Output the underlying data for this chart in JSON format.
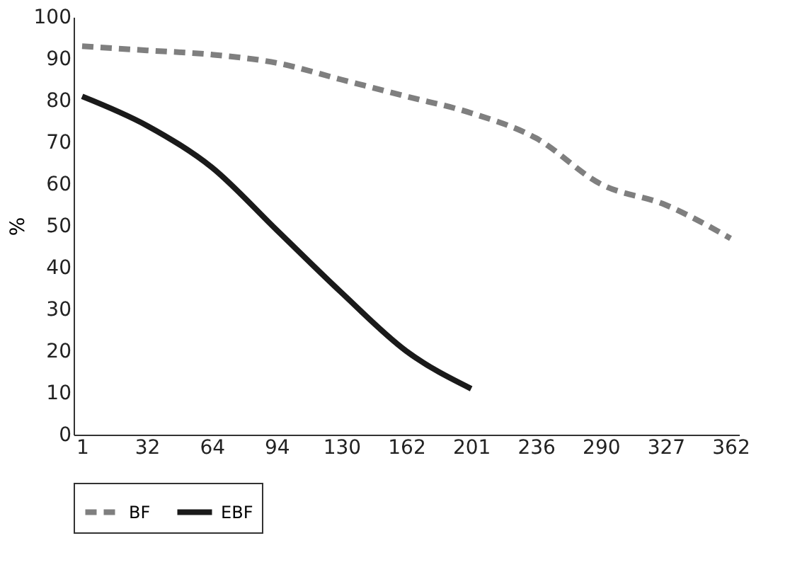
{
  "chart_data": {
    "type": "line",
    "ylabel": "%",
    "categories": [
      "1",
      "32",
      "64",
      "94",
      "130",
      "162",
      "201",
      "236",
      "290",
      "327",
      "362"
    ],
    "series": [
      {
        "name": "BF",
        "color": "#7f7f7f",
        "line_style": "dashed",
        "values": [
          93,
          92,
          91,
          89,
          85,
          81,
          77,
          71,
          60,
          55,
          47
        ]
      },
      {
        "name": "EBF",
        "color": "#1a1a1a",
        "line_style": "solid",
        "values": [
          81,
          74,
          64,
          49,
          34,
          20,
          11,
          null,
          null,
          null,
          null
        ]
      }
    ],
    "ylim": [
      0,
      100
    ],
    "yticks": [
      0,
      10,
      20,
      30,
      40,
      50,
      60,
      70,
      80,
      90,
      100
    ],
    "grid": false,
    "legend": "bottom",
    "marker": "none"
  }
}
